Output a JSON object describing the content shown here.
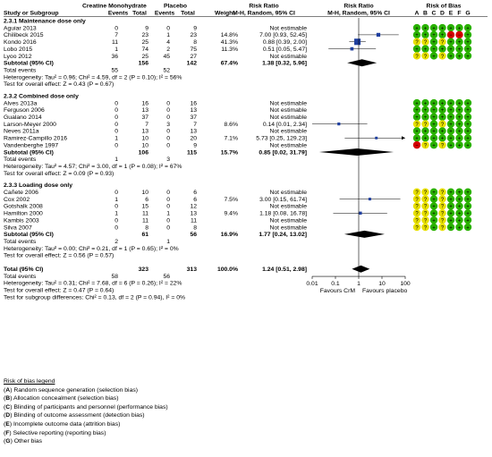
{
  "header": {
    "group1": "Creatine Monohydrate",
    "group2": "Placebo",
    "rr1": "Risk Ratio",
    "rr2": "Risk Ratio",
    "rob": "Risk of Bias",
    "study": "Study or Subgroup",
    "events1": "Events",
    "total1": "Total",
    "events2": "Events",
    "total2": "Total",
    "weight": "Weight",
    "method1": "M-H, Random, 95% CI",
    "method2": "M-H, Random, 95% CI",
    "rob_letters": [
      "A",
      "B",
      "C",
      "D",
      "E",
      "F",
      "G"
    ]
  },
  "axis": {
    "ticks": [
      "0.01",
      "0.1",
      "1",
      "10",
      "100"
    ],
    "left_label": "Favours CrM",
    "right_label": "Favours placebo"
  },
  "colors": {
    "low": "#2ab200",
    "unclear": "#e8e000",
    "high": "#d40000",
    "diamond": "#000000",
    "square": "#1f3f9f"
  },
  "chart_data": {
    "type": "forest",
    "scale": "log",
    "xlim": [
      0.01,
      100
    ],
    "subgroups": [
      {
        "title": "2.3.1 Maintenance dose only",
        "studies": [
          {
            "name": "Aguiar 2013",
            "e1": "0",
            "n1": "9",
            "e2": "0",
            "n2": "9",
            "weight": "",
            "rr_text": "Not estimable",
            "rr": null,
            "lo": null,
            "hi": null,
            "rob": [
              "L",
              "L",
              "L",
              "L",
              "L",
              "L",
              "L"
            ]
          },
          {
            "name": "Chilibeck 2015",
            "e1": "7",
            "n1": "23",
            "e2": "1",
            "n2": "23",
            "weight": "14.8%",
            "rr_text": "7.00 [0.93, 52.45]",
            "rr": 7.0,
            "lo": 0.93,
            "hi": 52.45,
            "rob": [
              "L",
              "L",
              "L",
              "L",
              "H",
              "H",
              "L"
            ]
          },
          {
            "name": "Kondo 2016",
            "e1": "11",
            "n1": "25",
            "e2": "4",
            "n2": "8",
            "weight": "41.3%",
            "rr_text": "0.88 [0.39, 2.00]",
            "rr": 0.88,
            "lo": 0.39,
            "hi": 2.0,
            "rob": [
              "U",
              "U",
              "L",
              "U",
              "L",
              "L",
              "L"
            ]
          },
          {
            "name": "Lobo 2015",
            "e1": "1",
            "n1": "74",
            "e2": "2",
            "n2": "75",
            "weight": "11.3%",
            "rr_text": "0.51 [0.05, 5.47]",
            "rr": 0.51,
            "lo": 0.05,
            "hi": 5.47,
            "rob": [
              "L",
              "L",
              "L",
              "L",
              "L",
              "L",
              "L"
            ]
          },
          {
            "name": "Lyoo 2012",
            "e1": "36",
            "n1": "25",
            "e2": "45",
            "n2": "27",
            "weight": "",
            "rr_text": "Not estimable",
            "rr": null,
            "lo": null,
            "hi": null,
            "rob": [
              "U",
              "U",
              "L",
              "U",
              "L",
              "L",
              "L"
            ]
          }
        ],
        "subtotal": {
          "label": "Subtotal (95% CI)",
          "n1": "156",
          "n2": "142",
          "weight": "67.4%",
          "rr_text": "1.38 [0.32, 5.96]",
          "rr": 1.38,
          "lo": 0.32,
          "hi": 5.96
        },
        "total_events": {
          "label": "Total events",
          "e1": "55",
          "e2": "52"
        },
        "heterogeneity": "Heterogeneity: Tau² = 0.96; Chi² = 4.59, df = 2 (P = 0.10); I² = 56%",
        "overall": "Test for overall effect: Z = 0.43 (P = 0.67)"
      },
      {
        "title": "2.3.2 Combined dose only",
        "studies": [
          {
            "name": "Alves 2013a",
            "e1": "0",
            "n1": "16",
            "e2": "0",
            "n2": "16",
            "weight": "",
            "rr_text": "Not estimable",
            "rr": null,
            "lo": null,
            "hi": null,
            "rob": [
              "L",
              "L",
              "L",
              "L",
              "L",
              "L",
              "L"
            ]
          },
          {
            "name": "Ferguson 2006",
            "e1": "0",
            "n1": "13",
            "e2": "0",
            "n2": "13",
            "weight": "",
            "rr_text": "Not estimable",
            "rr": null,
            "lo": null,
            "hi": null,
            "rob": [
              "L",
              "L",
              "L",
              "L",
              "L",
              "L",
              "L"
            ]
          },
          {
            "name": "Gualano 2014",
            "e1": "0",
            "n1": "37",
            "e2": "0",
            "n2": "37",
            "weight": "",
            "rr_text": "Not estimable",
            "rr": null,
            "lo": null,
            "hi": null,
            "rob": [
              "L",
              "L",
              "L",
              "L",
              "L",
              "L",
              "L"
            ]
          },
          {
            "name": "Larson-Meyer 2000",
            "e1": "0",
            "n1": "7",
            "e2": "3",
            "n2": "7",
            "weight": "8.6%",
            "rr_text": "0.14 [0.01, 2.34]",
            "rr": 0.14,
            "lo": 0.01,
            "hi": 2.34,
            "rob": [
              "U",
              "U",
              "L",
              "U",
              "L",
              "L",
              "L"
            ]
          },
          {
            "name": "Neves 2011a",
            "e1": "0",
            "n1": "13",
            "e2": "0",
            "n2": "13",
            "weight": "",
            "rr_text": "Not estimable",
            "rr": null,
            "lo": null,
            "hi": null,
            "rob": [
              "L",
              "L",
              "L",
              "L",
              "L",
              "L",
              "L"
            ]
          },
          {
            "name": "Ramirez-Campillo 2016",
            "e1": "1",
            "n1": "10",
            "e2": "0",
            "n2": "20",
            "weight": "7.1%",
            "rr_text": "5.73 [0.25, 129.23]",
            "rr": 5.73,
            "lo": 0.25,
            "hi": 129.23,
            "rob": [
              "L",
              "L",
              "L",
              "L",
              "L",
              "L",
              "L"
            ]
          },
          {
            "name": "Vandenberghe 1997",
            "e1": "0",
            "n1": "10",
            "e2": "0",
            "n2": "9",
            "weight": "",
            "rr_text": "Not estimable",
            "rr": null,
            "lo": null,
            "hi": null,
            "rob": [
              "H",
              "U",
              "L",
              "U",
              "L",
              "L",
              "L"
            ]
          }
        ],
        "subtotal": {
          "label": "Subtotal (95% CI)",
          "n1": "106",
          "n2": "115",
          "weight": "15.7%",
          "rr_text": "0.85 [0.02, 31.79]",
          "rr": 0.85,
          "lo": 0.02,
          "hi": 31.79
        },
        "total_events": {
          "label": "Total events",
          "e1": "1",
          "e2": "3"
        },
        "heterogeneity": "Heterogeneity: Tau² = 4.57; Chi² = 3.00, df = 1 (P = 0.08); I² = 67%",
        "overall": "Test for overall effect: Z = 0.09 (P = 0.93)"
      },
      {
        "title": "2.3.3 Loading dose only",
        "studies": [
          {
            "name": "Cañete 2006",
            "e1": "0",
            "n1": "10",
            "e2": "0",
            "n2": "6",
            "weight": "",
            "rr_text": "Not estimable",
            "rr": null,
            "lo": null,
            "hi": null,
            "rob": [
              "U",
              "U",
              "L",
              "U",
              "L",
              "L",
              "L"
            ]
          },
          {
            "name": "Cox 2002",
            "e1": "1",
            "n1": "6",
            "e2": "0",
            "n2": "6",
            "weight": "7.5%",
            "rr_text": "3.00 [0.15, 61.74]",
            "rr": 3.0,
            "lo": 0.15,
            "hi": 61.74,
            "rob": [
              "U",
              "U",
              "L",
              "U",
              "L",
              "L",
              "L"
            ]
          },
          {
            "name": "Gotshalk 2008",
            "e1": "0",
            "n1": "15",
            "e2": "0",
            "n2": "12",
            "weight": "",
            "rr_text": "Not estimable",
            "rr": null,
            "lo": null,
            "hi": null,
            "rob": [
              "U",
              "U",
              "L",
              "U",
              "L",
              "L",
              "L"
            ]
          },
          {
            "name": "Hamilton 2000",
            "e1": "1",
            "n1": "11",
            "e2": "1",
            "n2": "13",
            "weight": "9.4%",
            "rr_text": "1.18 [0.08, 16.78]",
            "rr": 1.18,
            "lo": 0.08,
            "hi": 16.78,
            "rob": [
              "U",
              "U",
              "L",
              "U",
              "L",
              "L",
              "L"
            ]
          },
          {
            "name": "Kambis 2003",
            "e1": "0",
            "n1": "11",
            "e2": "0",
            "n2": "11",
            "weight": "",
            "rr_text": "Not estimable",
            "rr": null,
            "lo": null,
            "hi": null,
            "rob": [
              "U",
              "U",
              "L",
              "U",
              "L",
              "L",
              "L"
            ]
          },
          {
            "name": "Silva 2007",
            "e1": "0",
            "n1": "8",
            "e2": "0",
            "n2": "8",
            "weight": "",
            "rr_text": "Not estimable",
            "rr": null,
            "lo": null,
            "hi": null,
            "rob": [
              "U",
              "U",
              "L",
              "U",
              "L",
              "L",
              "L"
            ]
          }
        ],
        "subtotal": {
          "label": "Subtotal (95% CI)",
          "n1": "61",
          "n2": "56",
          "weight": "16.9%",
          "rr_text": "1.77 [0.24, 13.02]",
          "rr": 1.77,
          "lo": 0.24,
          "hi": 13.02
        },
        "total_events": {
          "label": "Total events",
          "e1": "2",
          "e2": "1"
        },
        "heterogeneity": "Heterogeneity: Tau² = 0.00; Chi² = 0.21, df = 1 (P = 0.65); I² = 0%",
        "overall": "Test for overall effect: Z = 0.56 (P = 0.57)"
      }
    ],
    "total": {
      "label": "Total (95% CI)",
      "n1": "323",
      "n2": "313",
      "weight": "100.0%",
      "rr_text": "1.24 [0.51, 2.98]",
      "rr": 1.24,
      "lo": 0.51,
      "hi": 2.98
    },
    "total_events": {
      "label": "Total events",
      "e1": "58",
      "e2": "56"
    },
    "heterogeneity": "Heterogeneity: Tau² = 0.31; Chi² = 7.68, df = 6 (P = 0.26); I² = 22%",
    "overall": "Test for overall effect: Z = 0.47 (P = 0.64)",
    "subgroup_diff": "Test for subgroup differences: Chi² = 0.13, df = 2 (P = 0.94), I² = 0%"
  },
  "legend": {
    "title": "Risk of bias legend",
    "items": [
      {
        "letter": "(A)",
        "text": "Random sequence generation (selection bias)"
      },
      {
        "letter": "(B)",
        "text": "Allocation concealment (selection bias)"
      },
      {
        "letter": "(C)",
        "text": "Blinding of participants and personnel (performance bias)"
      },
      {
        "letter": "(D)",
        "text": "Blinding of outcome assessment (detection bias)"
      },
      {
        "letter": "(E)",
        "text": "Incomplete outcome data (attrition bias)"
      },
      {
        "letter": "(F)",
        "text": "Selective reporting (reporting bias)"
      },
      {
        "letter": "(G)",
        "text": "Other bias"
      }
    ]
  }
}
